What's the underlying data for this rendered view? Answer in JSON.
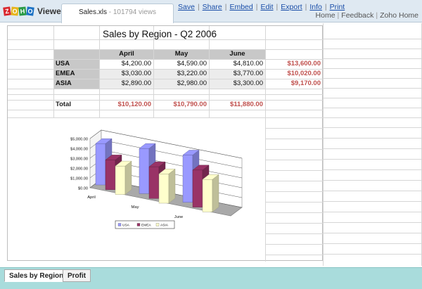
{
  "app": {
    "logo_letters": [
      "Z",
      "O",
      "H",
      "O"
    ],
    "logo_label": "Viewer",
    "file_name": "Sales.xls",
    "file_views": "101794 views"
  },
  "actions": [
    "Save",
    "Share",
    "Embed",
    "Edit",
    "Export",
    "Info",
    "Print"
  ],
  "links": [
    "Home",
    "Feedback",
    "Zoho Home"
  ],
  "sheet": {
    "title": "Sales by Region - Q2 2006",
    "columns": [
      "April",
      "May",
      "June"
    ],
    "rows": [
      {
        "region": "USA",
        "values": [
          "$4,200.00",
          "$4,590.00",
          "$4,810.00"
        ],
        "total": "$13,600.00"
      },
      {
        "region": "EMEA",
        "values": [
          "$3,030.00",
          "$3,220.00",
          "$3,770.00"
        ],
        "total": "$10,020.00"
      },
      {
        "region": "ASIA",
        "values": [
          "$2,890.00",
          "$2,980.00",
          "$3,300.00"
        ],
        "total": "$9,170.00"
      }
    ],
    "total_label": "Total",
    "column_totals": [
      "$10,120.00",
      "$10,790.00",
      "$11,880.00"
    ]
  },
  "colors": {
    "usa": "#9999ff",
    "emea": "#993366",
    "asia": "#ffffcc",
    "totals_text": "#c0504d",
    "bottom_bar": "#a9dcdc"
  },
  "chart_data": {
    "type": "bar",
    "categories": [
      "April",
      "May",
      "June"
    ],
    "series": [
      {
        "name": "USA",
        "values": [
          4200,
          4590,
          4810
        ]
      },
      {
        "name": "EMEA",
        "values": [
          3030,
          3220,
          3770
        ]
      },
      {
        "name": "ASIA",
        "values": [
          2890,
          2980,
          3300
        ]
      }
    ],
    "y_ticks": [
      "$0.00",
      "$1,000.00",
      "$2,000.00",
      "$3,000.00",
      "$4,000.00",
      "$5,000.00"
    ],
    "ylim": [
      0,
      5000
    ],
    "grid": true,
    "legend": "bottom"
  },
  "tabs": [
    "Sales by Region",
    "Profit"
  ]
}
